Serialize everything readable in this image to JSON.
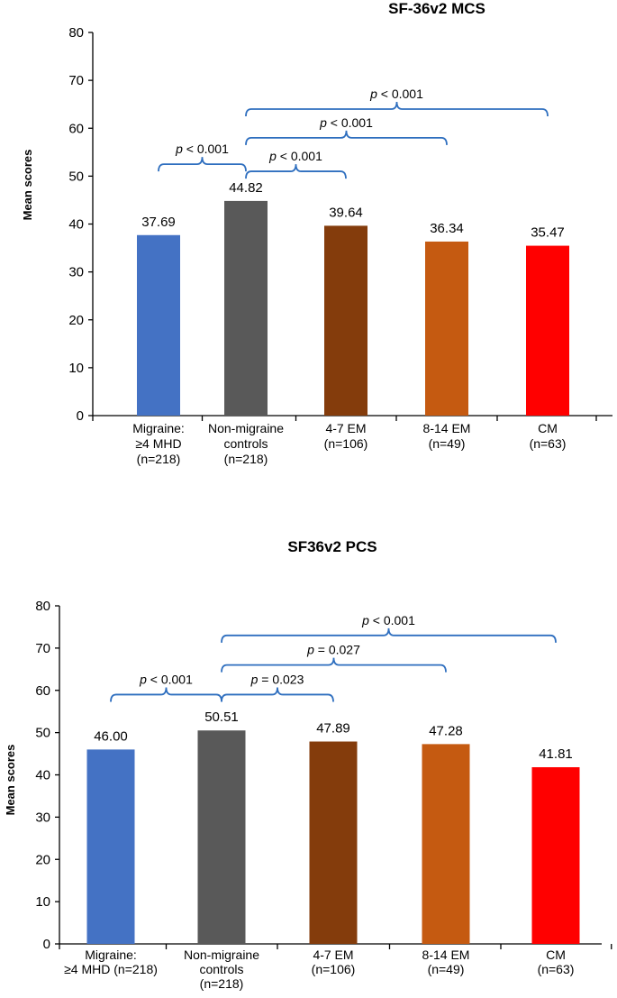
{
  "chart_data": [
    {
      "type": "bar",
      "title": "SF-36v2 MCS",
      "ylabel": "Mean scores",
      "xlabel": "",
      "ylim": [
        0,
        80
      ],
      "yticks": [
        0,
        10,
        20,
        30,
        40,
        50,
        60,
        70,
        80
      ],
      "categories": [
        [
          "Migraine:",
          "≥4 MHD",
          "(n=218)"
        ],
        [
          "Non-migraine",
          "controls",
          "(n=218)"
        ],
        [
          "4-7 EM",
          "(n=106)"
        ],
        [
          "8-14 EM",
          "(n=49)"
        ],
        [
          "CM",
          "(n=63)"
        ]
      ],
      "values": [
        37.69,
        44.82,
        39.64,
        36.34,
        35.47
      ],
      "value_labels": [
        "37.69",
        "44.82",
        "39.64",
        "36.34",
        "35.47"
      ],
      "colors": [
        "#4472c4",
        "#595959",
        "#843c0c",
        "#c55a11",
        "#ff0000"
      ],
      "comparisons": [
        {
          "from": 0,
          "to": 1,
          "level": 52.5,
          "italic": "p",
          "text": " < 0.001"
        },
        {
          "from": 1,
          "to": 2,
          "level": 51.0,
          "italic": "p",
          "text": " < 0.001"
        },
        {
          "from": 1,
          "to": 3,
          "level": 58.0,
          "italic": "p",
          "text": " < 0.001"
        },
        {
          "from": 1,
          "to": 4,
          "level": 64.0,
          "italic": "p",
          "text": " < 0.001"
        }
      ]
    },
    {
      "type": "bar",
      "title": "SF36v2 PCS",
      "ylabel": "Mean scores",
      "xlabel": "",
      "ylim": [
        0,
        80
      ],
      "yticks": [
        0,
        10,
        20,
        30,
        40,
        50,
        60,
        70,
        80
      ],
      "categories": [
        [
          "Migraine:",
          "≥4 MHD (n=218)"
        ],
        [
          "Non-migraine",
          "controls",
          "(n=218)"
        ],
        [
          "4-7 EM",
          "(n=106)"
        ],
        [
          "8-14 EM",
          "(n=49)"
        ],
        [
          "CM",
          "(n=63)"
        ]
      ],
      "values": [
        46.0,
        50.51,
        47.89,
        47.28,
        41.81
      ],
      "value_labels": [
        "46.00",
        "50.51",
        "47.89",
        "47.28",
        "41.81"
      ],
      "colors": [
        "#4472c4",
        "#595959",
        "#843c0c",
        "#c55a11",
        "#ff0000"
      ],
      "comparisons": [
        {
          "from": 0,
          "to": 1,
          "level": 59.0,
          "italic": "p",
          "text": " < 0.001"
        },
        {
          "from": 1,
          "to": 2,
          "level": 59.0,
          "italic": "p",
          "text": " = 0.023"
        },
        {
          "from": 1,
          "to": 3,
          "level": 66.0,
          "italic": "p",
          "text": " = 0.027"
        },
        {
          "from": 1,
          "to": 4,
          "level": 73.0,
          "italic": "p",
          "text": " < 0.001"
        }
      ]
    }
  ]
}
